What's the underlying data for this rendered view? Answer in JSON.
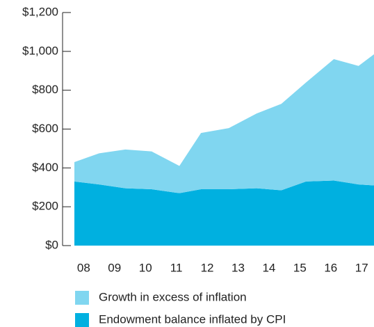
{
  "chart_data": {
    "type": "stacked-area",
    "x": [
      7.7,
      8.5,
      9.35,
      10.2,
      11.1,
      11.8,
      12.7,
      13.6,
      14.4,
      15.2,
      16.1,
      16.9,
      17.4
    ],
    "xlim": [
      7.7,
      17.4
    ],
    "xticks": [
      {
        "value": 8,
        "label": "08"
      },
      {
        "value": 9,
        "label": "09"
      },
      10,
      11,
      12,
      13,
      14,
      15,
      16,
      17
    ],
    "ylim": [
      0,
      1200
    ],
    "yticks": [
      {
        "value": 0,
        "label": "$0"
      },
      {
        "value": 200,
        "label": "$200"
      },
      {
        "value": 400,
        "label": "$400"
      },
      {
        "value": 600,
        "label": "$600"
      },
      {
        "value": 800,
        "label": "$800"
      },
      {
        "value": 1000,
        "label": "$1,000"
      },
      {
        "value": 1200,
        "label": "$1,200"
      }
    ],
    "series": [
      {
        "name": "Endowment balance inflated by CPI",
        "color": "#00b0e0",
        "values": [
          330,
          315,
          295,
          290,
          270,
          290,
          290,
          295,
          285,
          330,
          335,
          315,
          310
        ]
      },
      {
        "name": "Growth in excess of inflation",
        "color": "#80d6f0",
        "values": [
          100,
          160,
          200,
          195,
          140,
          290,
          315,
          385,
          445,
          510,
          625,
          610,
          675
        ]
      }
    ],
    "legend": "bottom"
  }
}
